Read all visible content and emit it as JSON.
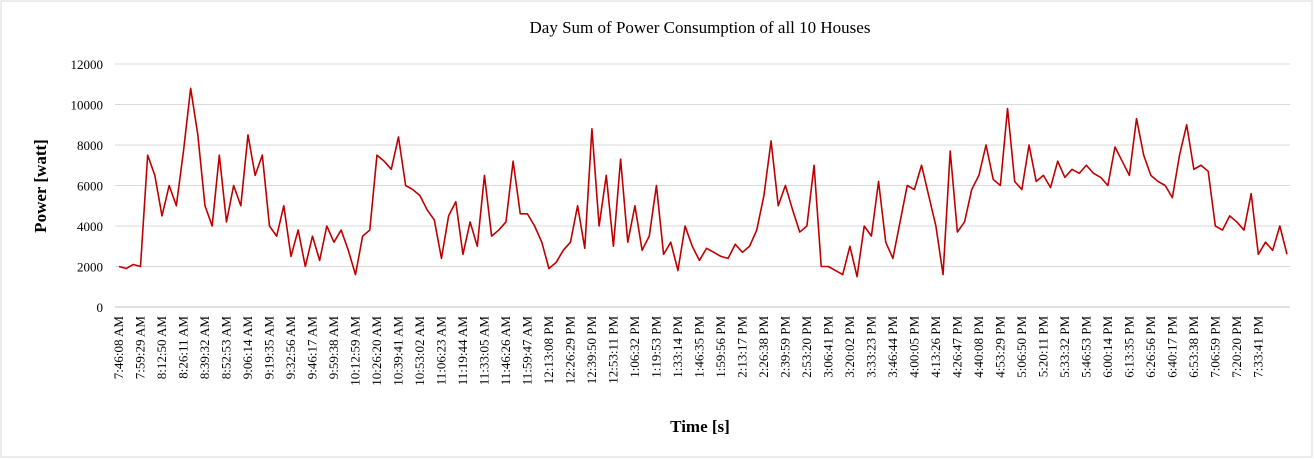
{
  "chart_data": {
    "type": "line",
    "title": "Day Sum of Power Consumption of all  10 Houses",
    "x_label": "Time [s]",
    "y_label": "Power [watt]",
    "categories": [
      "7:46:08 AM",
      null,
      null,
      "7:59:29 AM",
      null,
      null,
      "8:12:50 AM",
      null,
      null,
      "8:26:11 AM",
      null,
      null,
      "8:39:32 AM",
      null,
      null,
      "8:52:53 AM",
      null,
      null,
      "9:06:14 AM",
      null,
      null,
      "9:19:35 AM",
      null,
      null,
      "9:32:56 AM",
      null,
      null,
      "9:46:17 AM",
      null,
      null,
      "9:59:38 AM",
      null,
      null,
      "10:12:59 AM",
      null,
      null,
      "10:26:20 AM",
      null,
      null,
      "10:39:41 AM",
      null,
      null,
      "10:53:02 AM",
      null,
      null,
      "11:06:23 AM",
      null,
      null,
      "11:19:44 AM",
      null,
      null,
      "11:33:05 AM",
      null,
      null,
      "11:46:26 AM",
      null,
      null,
      "11:59:47 AM",
      null,
      null,
      "12:13:08 PM",
      null,
      null,
      "12:26:29 PM",
      null,
      null,
      "12:39:50 PM",
      null,
      null,
      "12:53:11 PM",
      null,
      null,
      "1:06:32 PM",
      null,
      null,
      "1:19:53 PM",
      null,
      null,
      "1:33:14 PM",
      null,
      null,
      "1:46:35 PM",
      null,
      null,
      "1:59:56 PM",
      null,
      null,
      "2:13:17 PM",
      null,
      null,
      "2:26:38 PM",
      null,
      null,
      "2:39:59 PM",
      null,
      null,
      "2:53:20 PM",
      null,
      null,
      "3:06:41 PM",
      null,
      null,
      "3:20:02 PM",
      null,
      null,
      "3:33:23 PM",
      null,
      null,
      "3:46:44 PM",
      null,
      null,
      "4:00:05 PM",
      null,
      null,
      "4:13:26 PM",
      null,
      null,
      "4:26:47 PM",
      null,
      null,
      "4:40:08 PM",
      null,
      null,
      "4:53:29 PM",
      null,
      null,
      "5:06:50 PM",
      null,
      null,
      "5:20:11 PM",
      null,
      null,
      "5:33:32 PM",
      null,
      null,
      "5:46:53 PM",
      null,
      null,
      "6:00:14 PM",
      null,
      null,
      "6:13:35 PM",
      null,
      null,
      "6:26:56 PM",
      null,
      null,
      "6:40:17 PM",
      null,
      null,
      "6:53:38 PM",
      null,
      null,
      "7:06:59 PM",
      null,
      null,
      "7:20:20 PM",
      null,
      null,
      "7:33:41 PM",
      null,
      null,
      null,
      null
    ],
    "series": [
      {
        "name": "Power",
        "color": "#c00000",
        "values": [
          2000,
          1900,
          2100,
          2000,
          7500,
          6500,
          4500,
          6000,
          5000,
          7700,
          10800,
          8500,
          5000,
          4000,
          7500,
          4200,
          6000,
          5000,
          8500,
          6500,
          7500,
          4000,
          3500,
          5000,
          2500,
          3800,
          2000,
          3500,
          2300,
          4000,
          3200,
          3800,
          2800,
          1600,
          3500,
          3800,
          7500,
          7200,
          6800,
          8400,
          6000,
          5800,
          5500,
          4800,
          4300,
          2400,
          4500,
          5200,
          2600,
          4200,
          3000,
          6500,
          3500,
          3800,
          4200,
          7200,
          4600,
          4600,
          4000,
          3200,
          1900,
          2200,
          2800,
          3200,
          5000,
          2900,
          8800,
          4000,
          6500,
          3000,
          7300,
          3200,
          5000,
          2800,
          3500,
          6000,
          2600,
          3200,
          1800,
          4000,
          3000,
          2300,
          2900,
          2700,
          2500,
          2400,
          3100,
          2700,
          3000,
          3800,
          5500,
          8200,
          5000,
          6000,
          4800,
          3700,
          4000,
          7000,
          2000,
          2000,
          1800,
          1600,
          3000,
          1500,
          4000,
          3500,
          6200,
          3200,
          2400,
          4200,
          6000,
          5800,
          7000,
          5500,
          4000,
          1600,
          7700,
          3700,
          4200,
          5800,
          6500,
          8000,
          6300,
          6000,
          9800,
          6200,
          5800,
          8000,
          6200,
          6500,
          5900,
          7200,
          6400,
          6800,
          6600,
          7000,
          6600,
          6400,
          6000,
          7900,
          7200,
          6500,
          9300,
          7500,
          6500,
          6200,
          6000,
          5400,
          7500,
          9000,
          6800,
          7000,
          6700,
          4000,
          3800,
          4500,
          4200,
          3800,
          5600,
          2600,
          3200,
          2800,
          4000,
          2600
        ]
      }
    ],
    "ylim": [
      0,
      12000
    ],
    "yticks": [
      0,
      2000,
      4000,
      6000,
      8000,
      10000,
      12000
    ],
    "grid": true
  }
}
